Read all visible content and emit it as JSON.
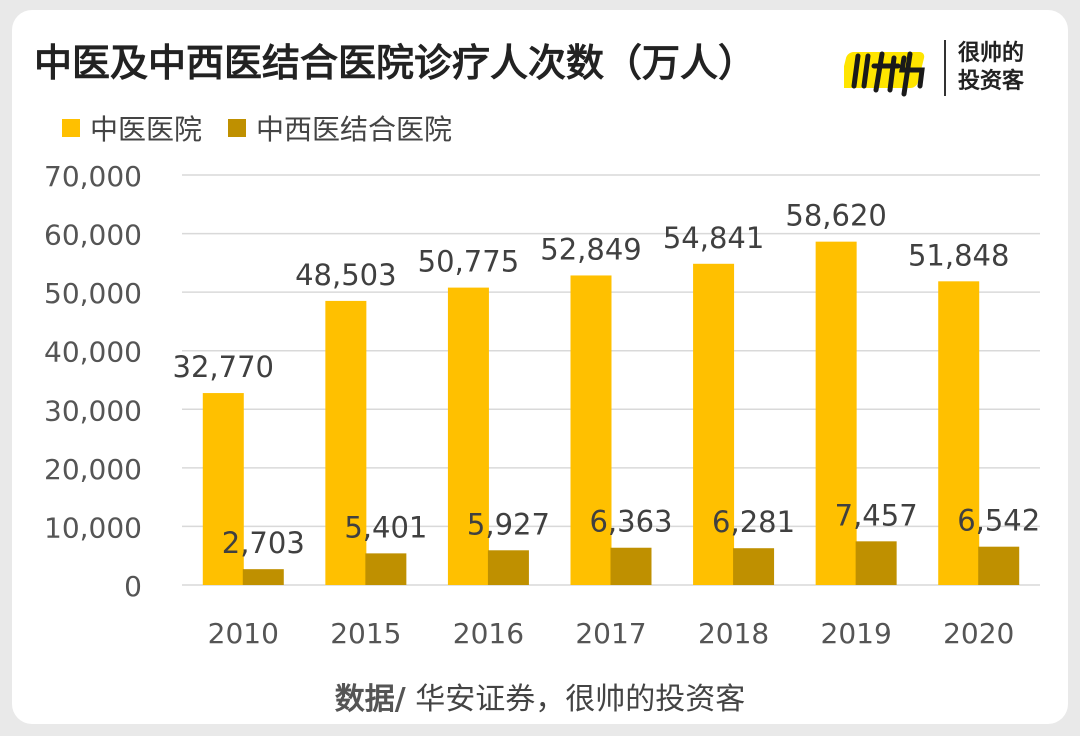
{
  "title": "中医及中西医结合医院诊疗人次数（万人）",
  "brand": {
    "line1": "很帅的",
    "line2": "投资客"
  },
  "source": {
    "prefix": "数据/",
    "text": " 华安证券，很帅的投资客"
  },
  "colors": {
    "series1": "#FFC000",
    "series2": "#BF9000",
    "grid": "#d9d9d9",
    "axis_text": "#555555",
    "label_text": "#404040"
  },
  "chart_data": {
    "type": "bar",
    "categories": [
      "2010",
      "2015",
      "2016",
      "2017",
      "2018",
      "2019",
      "2020"
    ],
    "series": [
      {
        "name": "中医医院",
        "values": [
          32770,
          48503,
          50775,
          52849,
          54841,
          58620,
          51848
        ],
        "labels": [
          "32,770",
          "48,503",
          "50,775",
          "52,849",
          "54,841",
          "58,620",
          "51,848"
        ]
      },
      {
        "name": "中西医结合医院",
        "values": [
          2703,
          5401,
          5927,
          6363,
          6281,
          7457,
          6542
        ],
        "labels": [
          "2,703",
          "5,401",
          "5,927",
          "6,363",
          "6,281",
          "7,457",
          "6,542"
        ]
      }
    ],
    "ylim": [
      0,
      70000
    ],
    "yticks": [
      0,
      10000,
      20000,
      30000,
      40000,
      50000,
      60000,
      70000
    ],
    "ytick_labels": [
      "0",
      "10,000",
      "20,000",
      "30,000",
      "40,000",
      "50,000",
      "60,000",
      "70,000"
    ],
    "grid": true,
    "legend_position": "top-left"
  }
}
